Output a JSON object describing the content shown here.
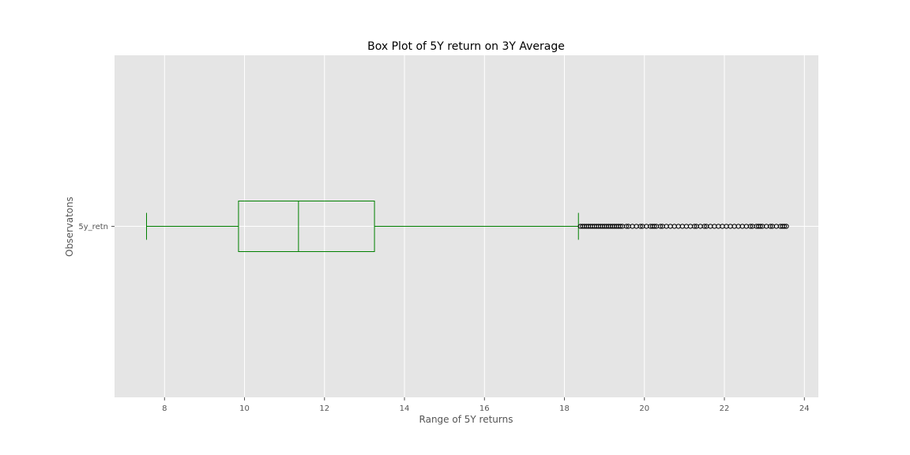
{
  "chart_data": {
    "type": "box",
    "orientation": "horizontal",
    "title": "Box Plot of 5Y return on 3Y Average",
    "xlabel": "Range of 5Y returns",
    "ylabel": "Observatons",
    "xlim": [
      6.75,
      24.35
    ],
    "xticks": [
      8,
      10,
      12,
      14,
      16,
      18,
      20,
      22,
      24
    ],
    "grid": true,
    "series": [
      {
        "name": "5y_retn",
        "whisker_low": 7.55,
        "q1": 9.85,
        "median": 11.35,
        "q3": 13.25,
        "whisker_high": 18.35,
        "outliers": [
          18.4,
          18.45,
          18.5,
          18.55,
          18.6,
          18.65,
          18.7,
          18.75,
          18.8,
          18.85,
          18.9,
          18.95,
          19.0,
          19.05,
          19.1,
          19.15,
          19.2,
          19.25,
          19.3,
          19.35,
          19.4,
          19.45,
          19.55,
          19.6,
          19.7,
          19.8,
          19.9,
          19.95,
          20.05,
          20.15,
          20.2,
          20.25,
          20.3,
          20.4,
          20.45,
          20.55,
          20.65,
          20.75,
          20.85,
          20.95,
          21.05,
          21.15,
          21.25,
          21.3,
          21.4,
          21.5,
          21.55,
          21.65,
          21.75,
          21.85,
          21.95,
          22.05,
          22.15,
          22.25,
          22.35,
          22.45,
          22.55,
          22.65,
          22.7,
          22.8,
          22.85,
          22.9,
          22.95,
          23.05,
          23.15,
          23.2,
          23.3,
          23.4,
          23.45,
          23.5,
          23.55
        ]
      }
    ],
    "colors": {
      "box": "#008000",
      "outlier_edge": "#000000",
      "background": "#e5e5e5",
      "grid": "#ffffff"
    }
  }
}
